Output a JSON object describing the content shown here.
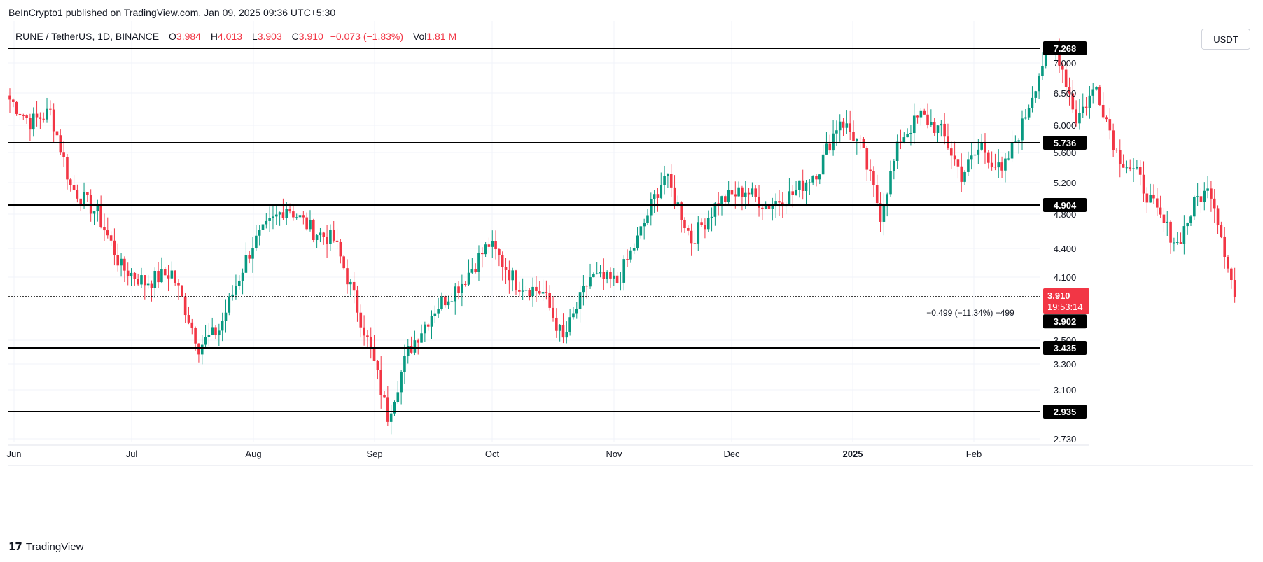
{
  "header": {
    "publish_text": "BeInCrypto1 published on TradingView.com, Jan 09, 2025 09:36 UTC+5:30"
  },
  "legend": {
    "symbol": "RUNE / TetherUS, 1D, BINANCE",
    "open_label": "O",
    "open": "3.984",
    "high_label": "H",
    "high": "4.013",
    "low_label": "L",
    "low": "3.903",
    "close_label": "C",
    "close": "3.910",
    "change": "−0.073 (−1.83%)",
    "vol_label": "Vol",
    "vol": "1.81 M"
  },
  "currency_button": "USDT",
  "brand": {
    "logo": "𝟭𝟳",
    "name": "TradingView"
  },
  "colors": {
    "up": "#089981",
    "down": "#f23645",
    "level": "#000000",
    "grid": "#f0f3fa"
  },
  "chart_data": {
    "type": "candlestick",
    "title": "RUNE / TetherUS, 1D, BINANCE",
    "y_axis_ticks": [
      2.73,
      3.1,
      3.3,
      3.5,
      4.1,
      4.4,
      4.8,
      5.2,
      5.6,
      6.0,
      6.5,
      7.0
    ],
    "y_tick_labels": [
      "2.730",
      "3.100",
      "3.300",
      "3.500",
      "4.100",
      "4.400",
      "4.800",
      "5.200",
      "5.600",
      "6.000",
      "6.500",
      "7.000"
    ],
    "x_axis_labels": [
      "Jun",
      "Jul",
      "Aug",
      "Sep",
      "Oct",
      "Nov",
      "Dec",
      "2025",
      "Feb"
    ],
    "horizontal_levels": [
      {
        "value": 7.268,
        "label": "7.268"
      },
      {
        "value": 5.736,
        "label": "5.736"
      },
      {
        "value": 4.904,
        "label": "4.904"
      },
      {
        "value": 3.435,
        "label": "3.435"
      },
      {
        "value": 2.935,
        "label": "2.935"
      }
    ],
    "dotted_level": {
      "value": 3.902,
      "label": "3.902"
    },
    "current_price": {
      "value": 3.91,
      "label": "3.910",
      "countdown": "19:53:14"
    },
    "annotation": "−0.499 (−11.34%) −499",
    "anchors": [
      [
        0,
        6.4
      ],
      [
        6,
        6.05
      ],
      [
        12,
        6.2
      ],
      [
        18,
        5.15
      ],
      [
        26,
        4.8
      ],
      [
        33,
        4.2
      ],
      [
        40,
        4.05
      ],
      [
        48,
        4.15
      ],
      [
        56,
        3.45
      ],
      [
        62,
        3.6
      ],
      [
        72,
        4.45
      ],
      [
        82,
        4.9
      ],
      [
        90,
        4.6
      ],
      [
        96,
        4.5
      ],
      [
        104,
        3.7
      ],
      [
        112,
        2.9
      ],
      [
        118,
        3.4
      ],
      [
        126,
        3.8
      ],
      [
        134,
        4.05
      ],
      [
        142,
        4.45
      ],
      [
        150,
        4.05
      ],
      [
        158,
        3.95
      ],
      [
        164,
        3.5
      ],
      [
        172,
        4.1
      ],
      [
        180,
        4.05
      ],
      [
        186,
        4.5
      ],
      [
        194,
        5.3
      ],
      [
        202,
        4.5
      ],
      [
        210,
        4.95
      ],
      [
        218,
        5.1
      ],
      [
        224,
        4.9
      ],
      [
        232,
        5.05
      ],
      [
        240,
        5.4
      ],
      [
        246,
        6.1
      ],
      [
        252,
        5.7
      ],
      [
        258,
        4.8
      ],
      [
        264,
        5.8
      ],
      [
        270,
        6.15
      ],
      [
        276,
        5.9
      ],
      [
        282,
        5.3
      ],
      [
        288,
        5.7
      ],
      [
        294,
        5.3
      ],
      [
        300,
        6.0
      ],
      [
        306,
        7.0
      ],
      [
        310,
        7.3
      ],
      [
        316,
        6.1
      ],
      [
        322,
        6.6
      ],
      [
        328,
        5.6
      ],
      [
        334,
        5.3
      ],
      [
        340,
        4.8
      ],
      [
        346,
        4.45
      ],
      [
        352,
        5.0
      ],
      [
        356,
        5.1
      ],
      [
        360,
        4.4
      ],
      [
        363,
        3.91
      ]
    ]
  }
}
